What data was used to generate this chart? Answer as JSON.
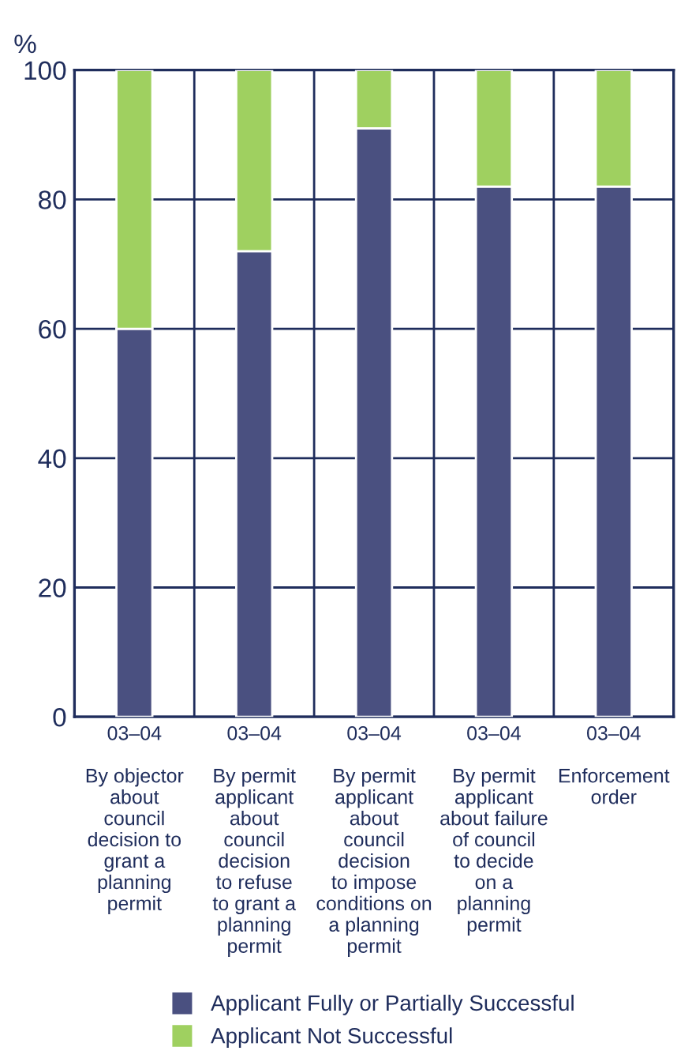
{
  "chart_data": {
    "type": "bar",
    "stacked": true,
    "ylabel": "%",
    "categories": [
      "03–04\n\nBy objector\nabout\ncouncil\ndecision to\ngrant a\nplanning\npermit",
      "03–04\n\nBy permit\napplicant\nabout\ncouncil\ndecision\nto refuse\nto grant a\nplanning\npermit",
      "03–04\n\nBy permit\napplicant\nabout\ncouncil\ndecision\nto impose\nconditions on\na planning\npermit",
      "03–04\n\nBy permit\napplicant\nabout failure\nof council\nto decide\non a\nplanning\npermit",
      "03–04\n\nEnforcement\norder"
    ],
    "series": [
      {
        "name": "Applicant Fully or Partially Successful",
        "color": "#4a5080",
        "values": [
          60,
          72,
          91,
          82,
          82
        ]
      },
      {
        "name": "Applicant Not Successful",
        "color": "#9fd060",
        "values": [
          40,
          28,
          9,
          18,
          18
        ]
      }
    ],
    "ylim": [
      0,
      100
    ],
    "yticks": [
      0,
      20,
      40,
      60,
      80,
      100
    ],
    "grid": true,
    "legend": "bottom"
  }
}
